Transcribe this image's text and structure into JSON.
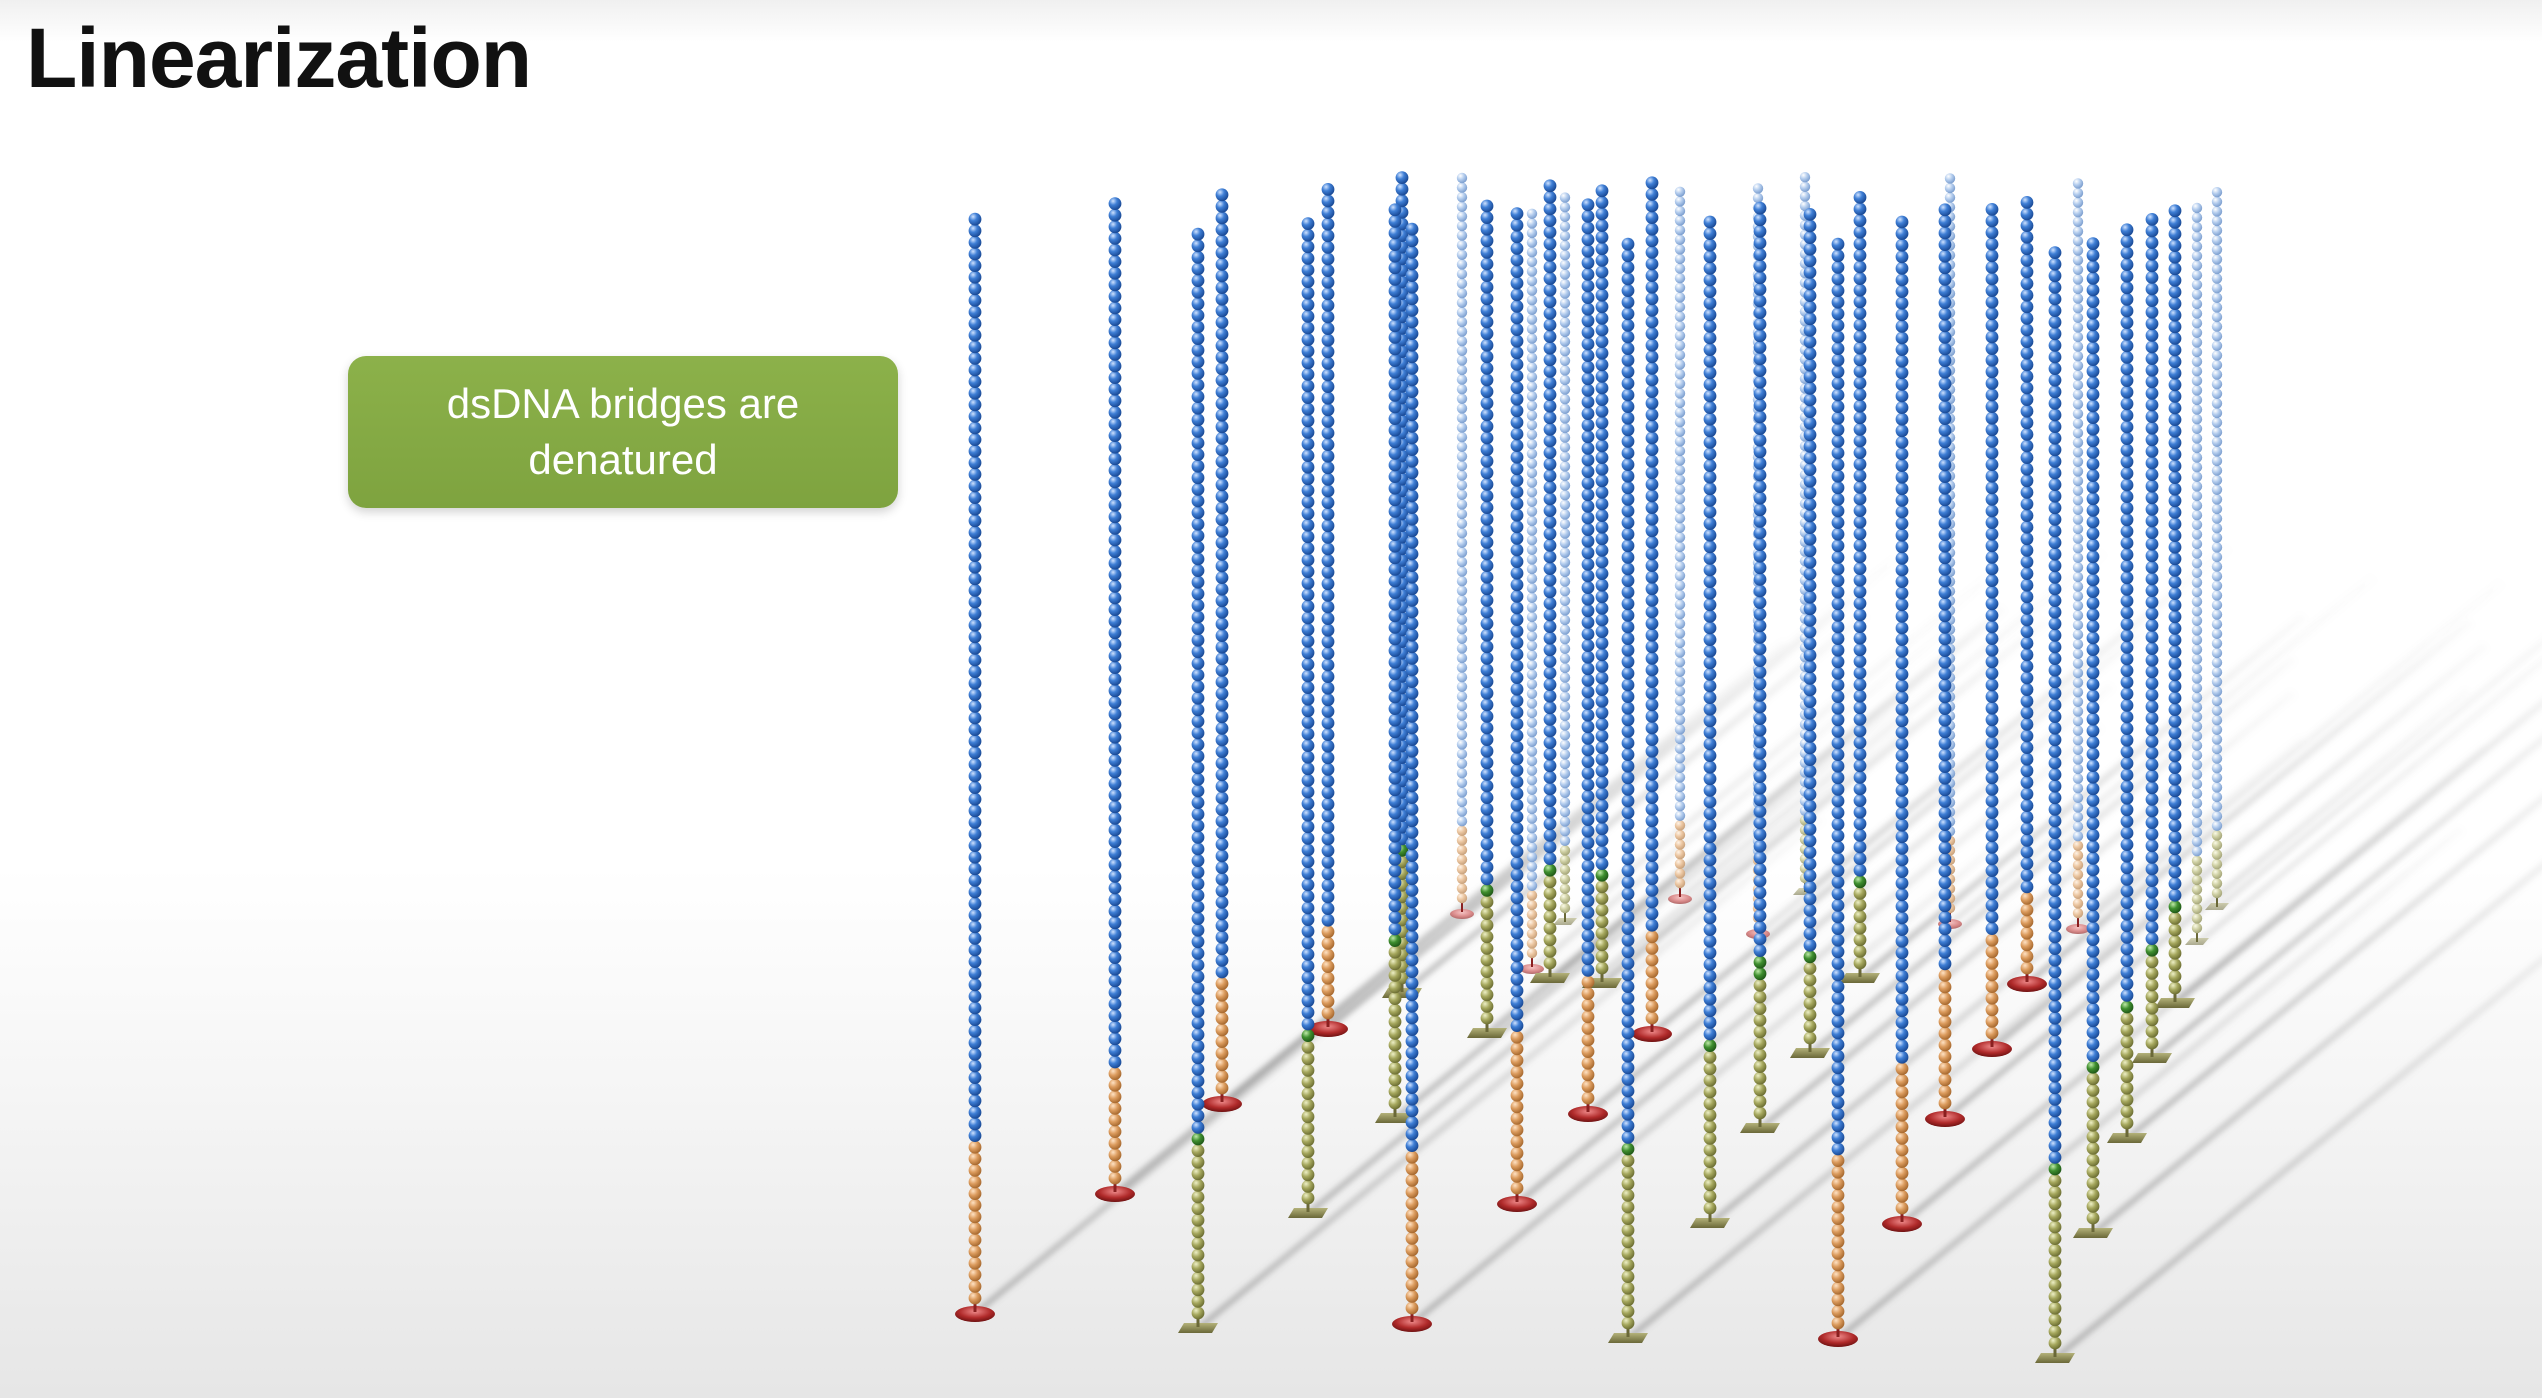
{
  "slide": {
    "title": "Linearization"
  },
  "callout": {
    "text": "dsDNA bridges are denatured",
    "color": "#86ad45"
  },
  "colors": {
    "strand_blue": "#2e6cc4",
    "strand_blue_light": "#a8c3e8",
    "adapter_orange": "#d99a5c",
    "adapter_olive": "#a3a55a",
    "junction_green": "#3d8a2e",
    "anchor_red": "#b23030",
    "anchor_khaki": "#8c8a55"
  },
  "diagram": {
    "description_icon": "flow-cell-strands-icon"
  }
}
